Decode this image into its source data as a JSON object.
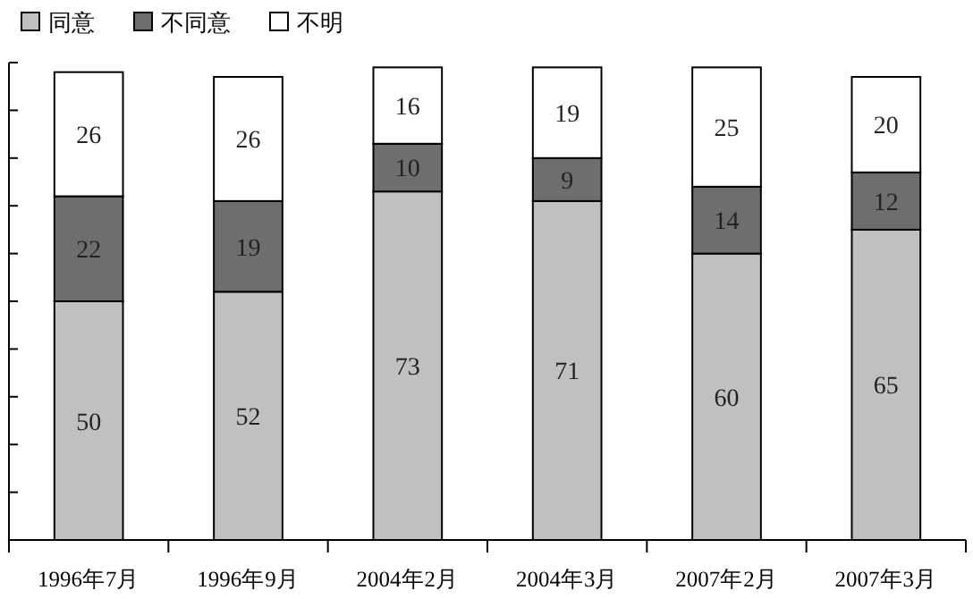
{
  "chart_data": {
    "type": "bar",
    "stacked": true,
    "categories": [
      "1996年7月",
      "1996年9月",
      "2004年2月",
      "2004年3月",
      "2007年2月",
      "2007年3月"
    ],
    "series": [
      {
        "name": "同意",
        "color": "#c0c0c0",
        "values": [
          50,
          52,
          73,
          71,
          60,
          65
        ]
      },
      {
        "name": "不同意",
        "color": "#6e6e6e",
        "values": [
          22,
          19,
          10,
          9,
          14,
          12
        ]
      },
      {
        "name": "不明",
        "color": "#ffffff",
        "values": [
          26,
          26,
          16,
          19,
          25,
          20
        ]
      }
    ],
    "ylim": [
      0,
      100
    ],
    "yticks": [
      {
        "value": 0,
        "label": null
      },
      {
        "value": 10,
        "label": null
      },
      {
        "value": 20,
        "label": null
      },
      {
        "value": 30,
        "label": null
      },
      {
        "value": 40,
        "label": null
      },
      {
        "value": 50,
        "label": null
      },
      {
        "value": 60,
        "label": null
      },
      {
        "value": 70,
        "label": null
      },
      {
        "value": 80,
        "label": null
      },
      {
        "value": 90,
        "label": null
      },
      {
        "value": 100,
        "label": null
      }
    ],
    "tick_labels": "x",
    "data_labels": true,
    "legend": "top left",
    "grid": false
  }
}
